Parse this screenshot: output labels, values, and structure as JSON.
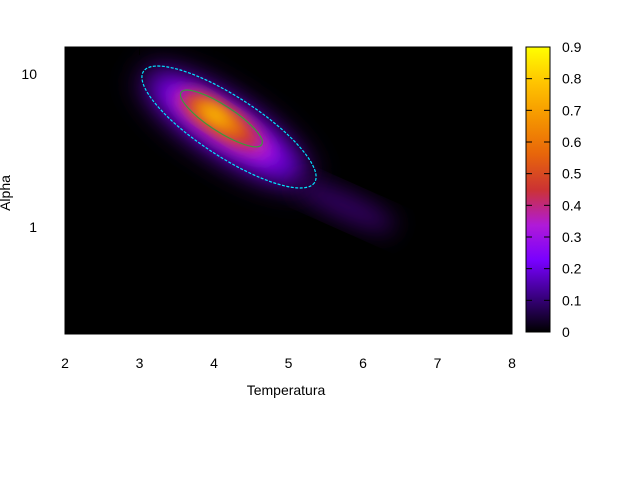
{
  "chart_data": {
    "type": "heatmap",
    "title": "",
    "xlabel": "Temperatura",
    "ylabel": "Alpha",
    "x_range": [
      2,
      8
    ],
    "y_range": [
      0.2,
      15
    ],
    "y_scale": "log",
    "x_ticks": [
      2,
      3,
      4,
      5,
      6,
      7,
      8
    ],
    "y_ticks": [
      {
        "value": 1,
        "label": "1"
      },
      {
        "value": 10,
        "label": "10"
      }
    ],
    "colorbar": {
      "range": [
        0,
        0.9
      ],
      "ticks": [
        "0",
        "0.1",
        "0.2",
        "0.3",
        "0.4",
        "0.5",
        "0.6",
        "0.7",
        "0.8",
        "0.9"
      ],
      "palette": [
        "#000000",
        "#3a0082",
        "#7800ff",
        "#b01ad8",
        "#cc3333",
        "#e8660a",
        "#f59500",
        "#ffc400",
        "#ffff00"
      ]
    },
    "density": {
      "peak_x": 4.1,
      "peak_y": 4.5,
      "peak_value": 0.9,
      "correlation": "negative"
    },
    "contours": [
      {
        "level": 0.1,
        "color": "#00e5ff"
      },
      {
        "level": 0.5,
        "color": "#3a9a3a"
      }
    ],
    "grid": false,
    "legend": "none"
  }
}
